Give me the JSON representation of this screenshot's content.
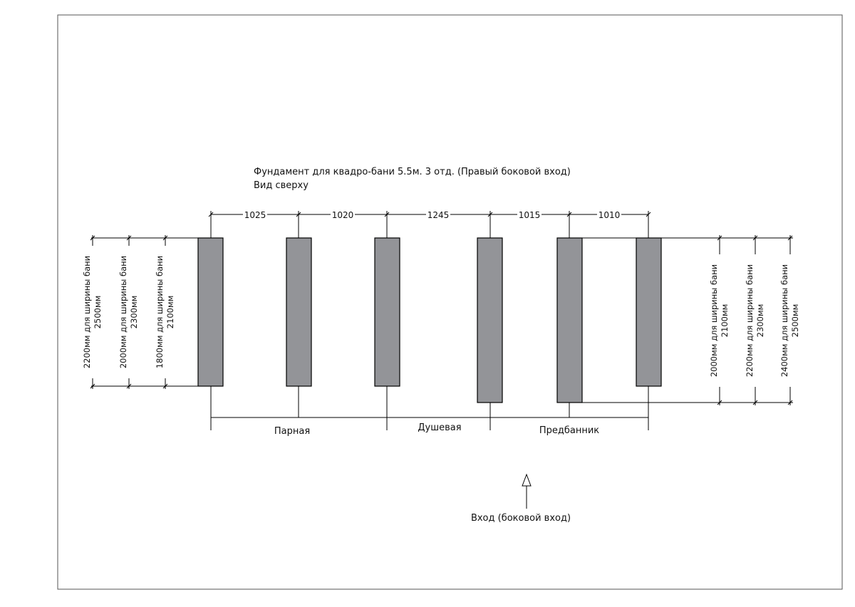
{
  "drawing": {
    "title": "Фундамент для квадро-бани 5.5м. 3 отд. (Правый боковой вход)",
    "subtitle": "Вид сверху",
    "spacings": [
      "1025",
      "1020",
      "1245",
      "1015",
      "1010"
    ],
    "rooms": [
      "Парная",
      "Душевая",
      "Предбанник"
    ],
    "left_dims": [
      {
        "line1": "2200мм для ширины бани",
        "line2": "2500мм"
      },
      {
        "line1": "2000мм для ширины бани",
        "line2": "2300мм"
      },
      {
        "line1": "1800мм для ширины бани",
        "line2": "2100мм"
      }
    ],
    "right_dims": [
      {
        "line1": "2000мм для ширины бани",
        "line2": "2100мм"
      },
      {
        "line1": "2200мм для ширины бани",
        "line2": "2300мм"
      },
      {
        "line1": "2400мм для ширины бани",
        "line2": "2500мм"
      }
    ],
    "entrance": "Вход (боковой вход)"
  }
}
